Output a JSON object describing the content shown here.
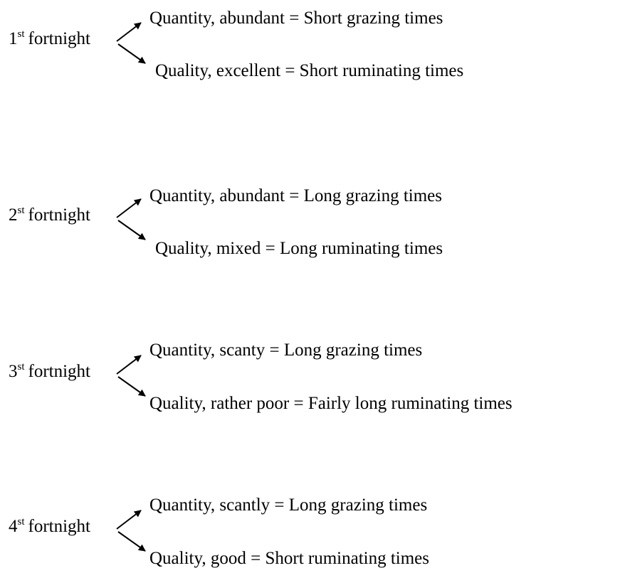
{
  "groups": [
    {
      "number": "1",
      "suffix": "st",
      "label": "fortnight",
      "quantity": "Quantity, abundant = Short grazing times",
      "quality": "Quality, excellent = Short ruminating times"
    },
    {
      "number": "2",
      "suffix": "st",
      "label": "fortnight",
      "quantity": "Quantity, abundant = Long grazing times",
      "quality": "Quality, mixed = Long ruminating times"
    },
    {
      "number": "3",
      "suffix": "st",
      "label": "fortnight",
      "quantity": "Quantity, scanty = Long grazing times",
      "quality": "Quality, rather poor = Fairly long ruminating times"
    },
    {
      "number": "4",
      "suffix": "st",
      "label": "fortnight",
      "quantity": "Quantity, scantly = Long grazing times",
      "quality": "Quality, good = Short ruminating times"
    }
  ]
}
